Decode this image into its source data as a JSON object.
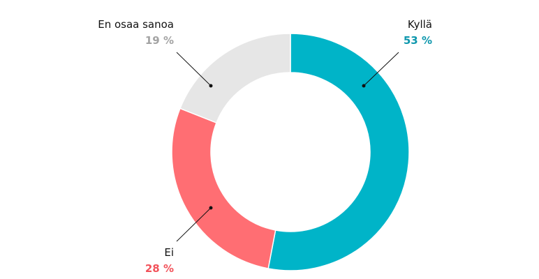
{
  "chart_data": {
    "type": "pie",
    "variant": "donut",
    "slices": [
      {
        "label": "Kyllä",
        "value": 53,
        "value_text": "53 %",
        "color": "#00b4c8",
        "label_color": "#0e97ad"
      },
      {
        "label": "Ei",
        "value": 28,
        "value_text": "28 %",
        "color": "#ff6e73",
        "label_color": "#f2525a"
      },
      {
        "label": "En osaa sanoa",
        "value": 19,
        "value_text": "19 %",
        "color": "#e6e6e6",
        "label_color": "#a3a3a3"
      }
    ]
  }
}
